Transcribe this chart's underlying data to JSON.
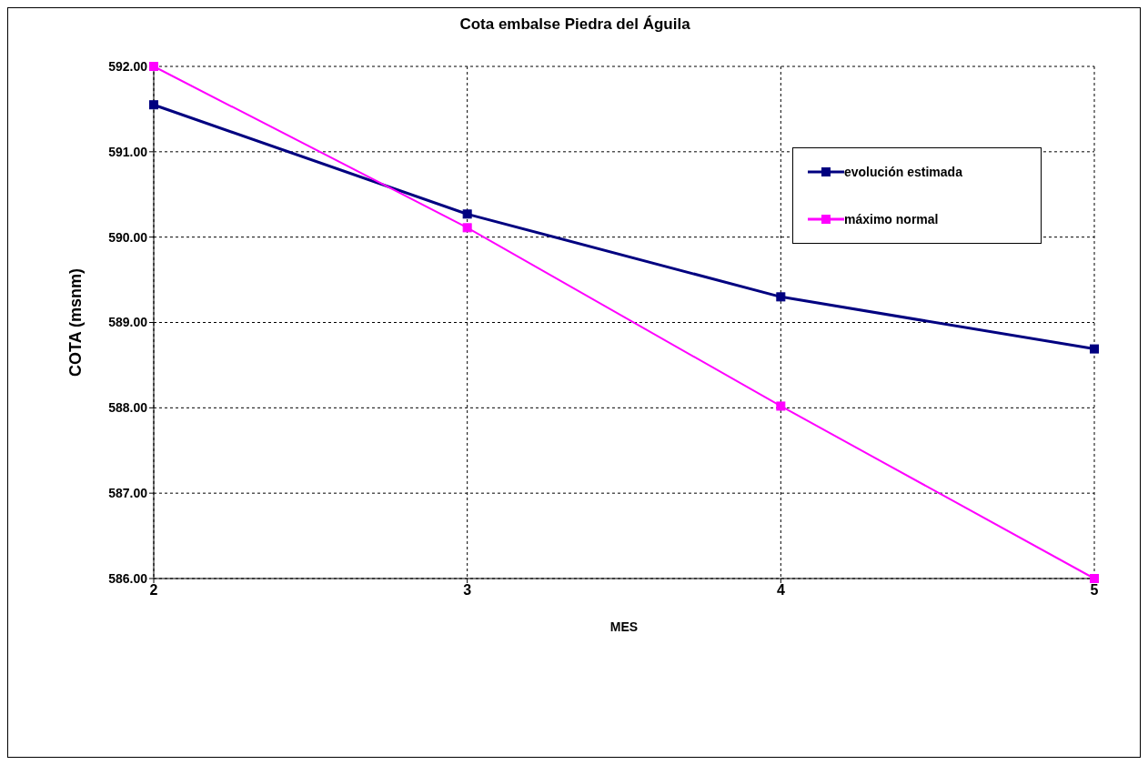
{
  "chart_data": {
    "type": "line",
    "title": "Cota embalse Piedra del Águila",
    "xlabel": "MES",
    "ylabel": "COTA (msnm)",
    "x": [
      2,
      3,
      4,
      5
    ],
    "series": [
      {
        "name": "evolución estimada",
        "color": "#000080",
        "values": [
          591.55,
          590.27,
          589.3,
          588.69
        ]
      },
      {
        "name": "máximo normal",
        "color": "#ff00ff",
        "values": [
          592,
          590.11,
          588.02,
          586
        ]
      }
    ],
    "xlim": [
      2,
      5
    ],
    "xticks": [
      2,
      3,
      4,
      5
    ],
    "ylim": [
      586,
      592
    ],
    "yticks": [
      {
        "value": 586,
        "label": "586.00"
      },
      {
        "value": 587,
        "label": "587.00"
      },
      {
        "value": 588,
        "label": "588.00"
      },
      {
        "value": 589,
        "label": "589.00"
      },
      {
        "value": 590,
        "label": "590.00"
      },
      {
        "value": 591,
        "label": "591.00"
      },
      {
        "value": 592,
        "label": "592.00"
      }
    ],
    "grid": true,
    "legend": "top right",
    "marker": "square",
    "line_style": "solid"
  }
}
